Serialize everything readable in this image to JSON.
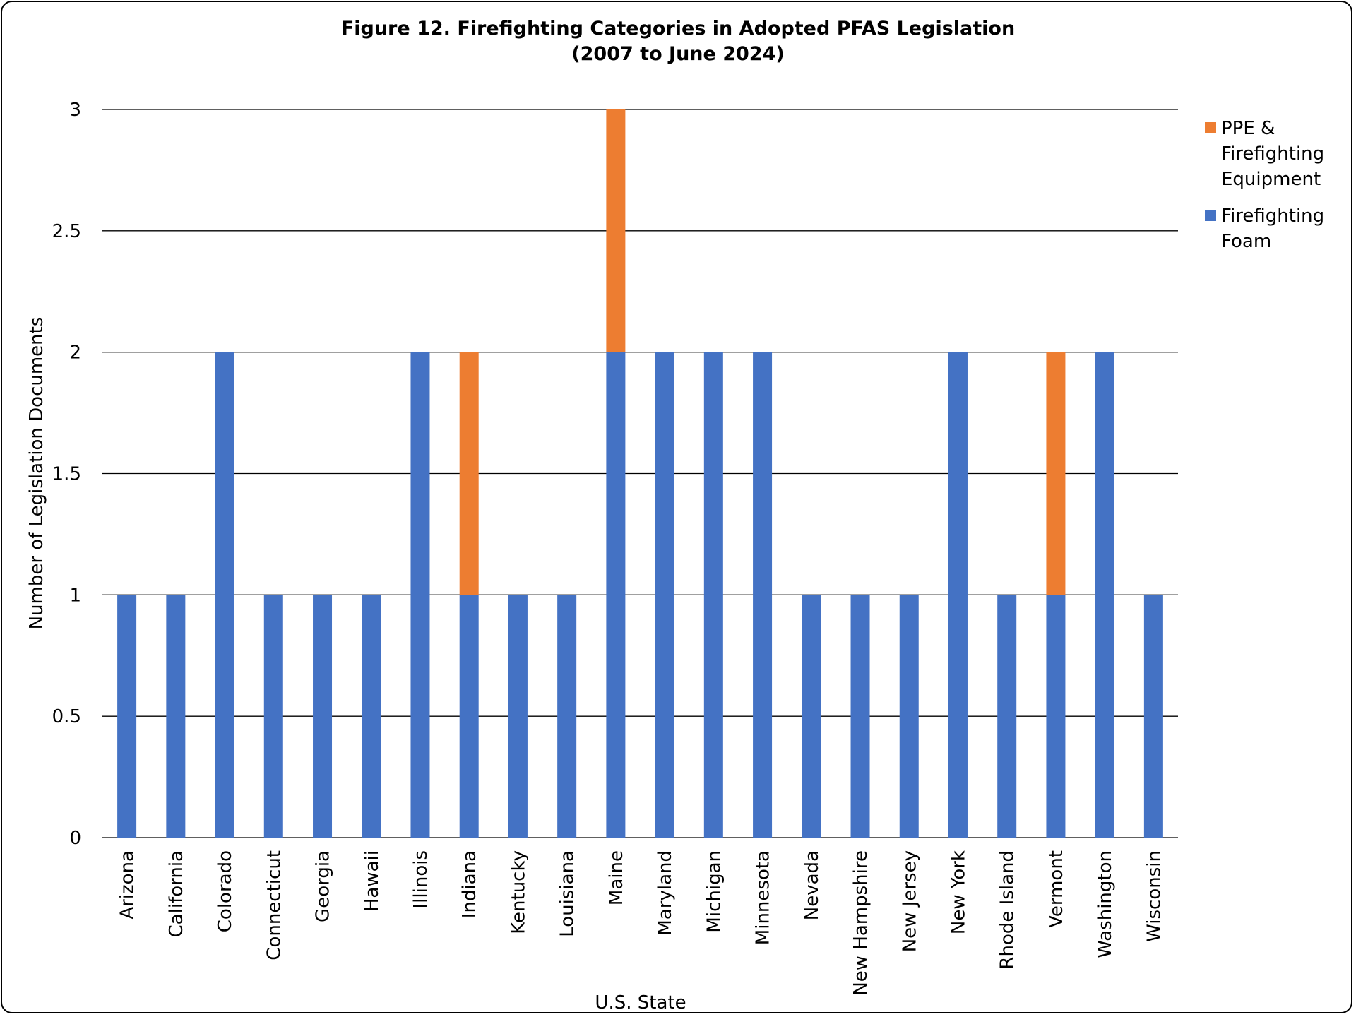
{
  "chart_data": {
    "type": "bar",
    "stacked": true,
    "title": "Figure 12. Firefighting Categories in Adopted PFAS Legislation",
    "subtitle": "(2007 to June 2024)",
    "xlabel": "U.S. State",
    "ylabel": "Number of Legislation Documents",
    "ylim": [
      0,
      3
    ],
    "yticks": [
      "0",
      "0.5",
      "1",
      "1.5",
      "2",
      "2.5",
      "3"
    ],
    "grid": true,
    "legend_position": "right",
    "categories": [
      "Arizona",
      "California",
      "Colorado",
      "Connecticut",
      "Georgia",
      "Hawaii",
      "Illinois",
      "Indiana",
      "Kentucky",
      "Louisiana",
      "Maine",
      "Maryland",
      "Michigan",
      "Minnesota",
      "Nevada",
      "New Hampshire",
      "New Jersey",
      "New York",
      "Rhode Island",
      "Vermont",
      "Washington",
      "Wisconsin"
    ],
    "series": [
      {
        "name": "Firefighting Foam",
        "color": "#4472C4",
        "values": [
          1,
          1,
          2,
          1,
          1,
          1,
          2,
          1,
          1,
          1,
          2,
          2,
          2,
          2,
          1,
          1,
          1,
          2,
          1,
          1,
          2,
          1
        ]
      },
      {
        "name": "PPE & Firefighting Equipment",
        "color": "#ED7D31",
        "values": [
          0,
          0,
          0,
          0,
          0,
          0,
          0,
          1,
          0,
          0,
          1,
          0,
          0,
          0,
          0,
          0,
          0,
          0,
          0,
          1,
          0,
          0
        ]
      }
    ],
    "legend": [
      {
        "lines": [
          "PPE &",
          "Firefighting",
          "Equipment"
        ],
        "color": "#ED7D31"
      },
      {
        "lines": [
          "Firefighting",
          "Foam"
        ],
        "color": "#4472C4"
      }
    ]
  }
}
